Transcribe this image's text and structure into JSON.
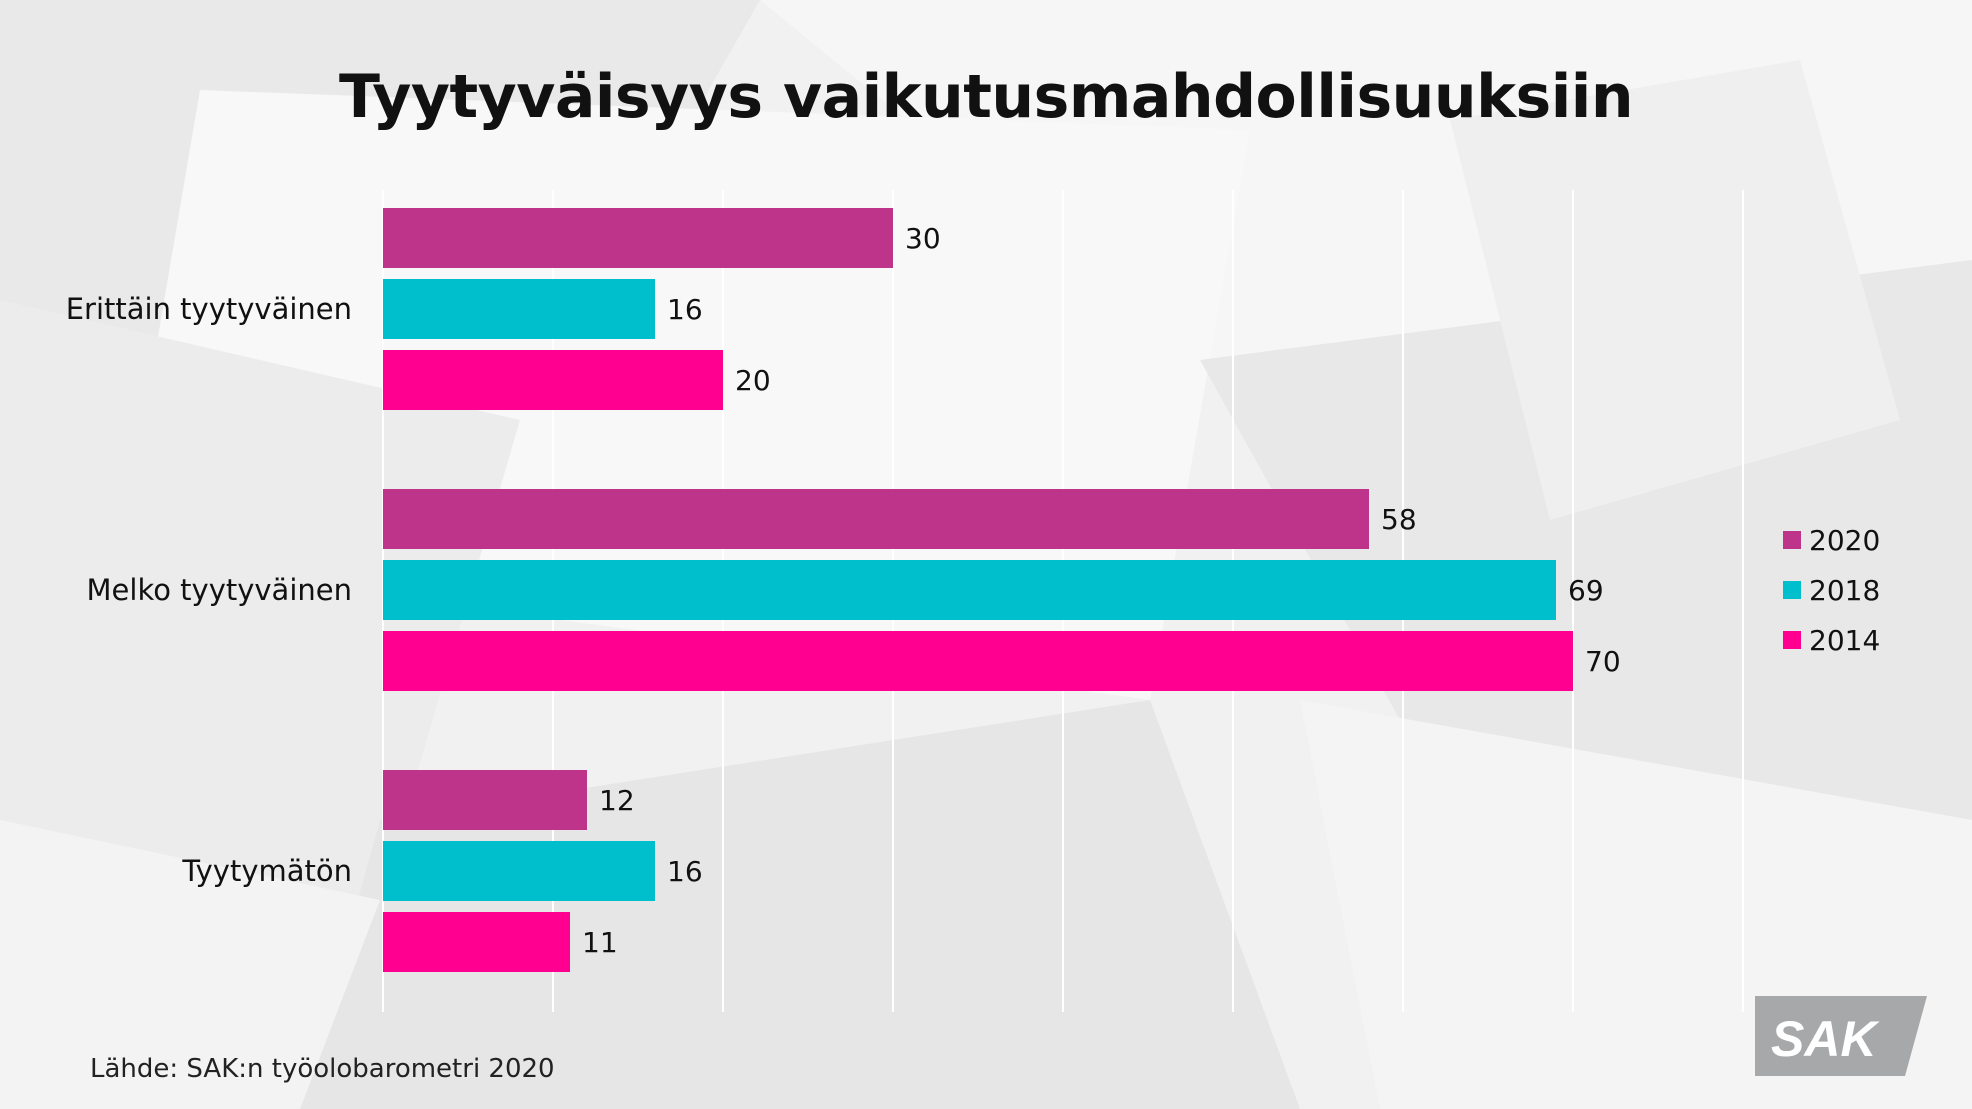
{
  "chart_data": {
    "type": "bar",
    "orientation": "horizontal",
    "title": "Tyytyväisyys vaikutusmahdollisuuksiin",
    "categories": [
      "Erittäin tyytyväinen",
      "Melko tyytyväinen",
      "Tyytymätön"
    ],
    "series": [
      {
        "name": "2020",
        "color": "#be348a",
        "values": [
          30,
          58,
          12
        ]
      },
      {
        "name": "2018",
        "color": "#00bfcc",
        "values": [
          16,
          69,
          16
        ]
      },
      {
        "name": "2014",
        "color": "#ff0090",
        "values": [
          20,
          70,
          11
        ]
      }
    ],
    "xlim": [
      0,
      80
    ],
    "grid": true,
    "legend": "right",
    "data_labels": true
  },
  "source": "Lähde: SAK:n työolobarometri 2020",
  "logo": {
    "text": "SAK",
    "color": "#a7a8aa"
  }
}
